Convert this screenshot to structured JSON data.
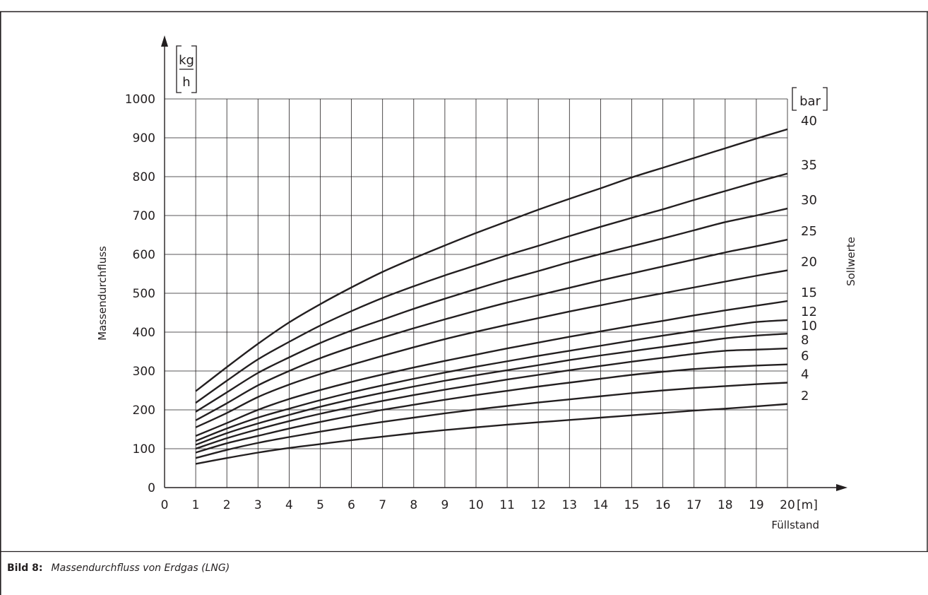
{
  "figure": {
    "label": "Bild 8:",
    "caption": "Massendurchfluss von Erdgas (LNG)"
  },
  "chart_data": {
    "type": "line",
    "xlabel": "Füllstand",
    "x_unit": "[m]",
    "ylabel": "Massendurchfluss",
    "y_unit_num": "kg",
    "y_unit_den": "h",
    "series_axis_label": "Sollwerte",
    "series_unit": "bar",
    "xlim": [
      0,
      20
    ],
    "ylim": [
      0,
      1000
    ],
    "x_ticks": [
      0,
      1,
      2,
      3,
      4,
      5,
      6,
      7,
      8,
      9,
      10,
      11,
      12,
      13,
      14,
      15,
      16,
      17,
      18,
      19,
      20
    ],
    "y_ticks": [
      0,
      100,
      200,
      300,
      400,
      500,
      600,
      700,
      800,
      900,
      1000
    ],
    "grid": true,
    "x": [
      1,
      2,
      3,
      4,
      5,
      6,
      7,
      8,
      9,
      10,
      11,
      12,
      13,
      14,
      15,
      16,
      17,
      18,
      19,
      20
    ],
    "series": [
      {
        "name": "40",
        "values": [
          248,
          310,
          370,
          425,
          472,
          515,
          555,
          590,
          623,
          655,
          685,
          715,
          743,
          770,
          798,
          823,
          848,
          873,
          898,
          922
        ]
      },
      {
        "name": "35",
        "values": [
          218,
          275,
          330,
          375,
          417,
          454,
          488,
          518,
          546,
          572,
          598,
          622,
          647,
          671,
          694,
          716,
          740,
          763,
          786,
          808
        ]
      },
      {
        "name": "30",
        "values": [
          195,
          245,
          295,
          335,
          372,
          404,
          432,
          460,
          486,
          511,
          535,
          557,
          580,
          601,
          621,
          641,
          662,
          683,
          700,
          718
        ]
      },
      {
        "name": "25",
        "values": [
          173,
          217,
          263,
          300,
          333,
          361,
          386,
          410,
          433,
          455,
          476,
          495,
          514,
          533,
          551,
          569,
          587,
          605,
          621,
          638
        ]
      },
      {
        "name": "20",
        "values": [
          155,
          192,
          233,
          265,
          292,
          316,
          339,
          361,
          382,
          401,
          419,
          436,
          453,
          469,
          485,
          500,
          515,
          530,
          545,
          559
        ]
      },
      {
        "name": "15",
        "values": [
          133,
          166,
          200,
          228,
          251,
          272,
          291,
          309,
          326,
          342,
          358,
          373,
          388,
          402,
          416,
          429,
          443,
          456,
          468,
          480
        ]
      },
      {
        "name": "12",
        "values": [
          120,
          152,
          180,
          203,
          225,
          245,
          263,
          280,
          296,
          311,
          325,
          339,
          352,
          365,
          378,
          391,
          403,
          415,
          426,
          431
        ]
      },
      {
        "name": "10",
        "values": [
          110,
          140,
          165,
          187,
          208,
          227,
          244,
          260,
          275,
          289,
          302,
          315,
          328,
          340,
          351,
          362,
          373,
          384,
          391,
          396
        ]
      },
      {
        "name": "8",
        "values": [
          100,
          127,
          150,
          171,
          190,
          207,
          223,
          238,
          252,
          265,
          278,
          290,
          302,
          313,
          324,
          334,
          344,
          352,
          355,
          358
        ]
      },
      {
        "name": "6",
        "values": [
          90,
          114,
          133,
          152,
          169,
          185,
          200,
          213,
          226,
          238,
          249,
          260,
          270,
          280,
          290,
          298,
          305,
          310,
          314,
          317
        ]
      },
      {
        "name": "4",
        "values": [
          76,
          97,
          115,
          130,
          144,
          157,
          169,
          180,
          191,
          201,
          210,
          219,
          227,
          235,
          243,
          250,
          256,
          261,
          266,
          270
        ]
      },
      {
        "name": "2",
        "values": [
          61,
          76,
          90,
          102,
          112,
          122,
          131,
          140,
          148,
          155,
          162,
          168,
          174,
          180,
          186,
          192,
          198,
          203,
          209,
          215
        ]
      }
    ]
  }
}
